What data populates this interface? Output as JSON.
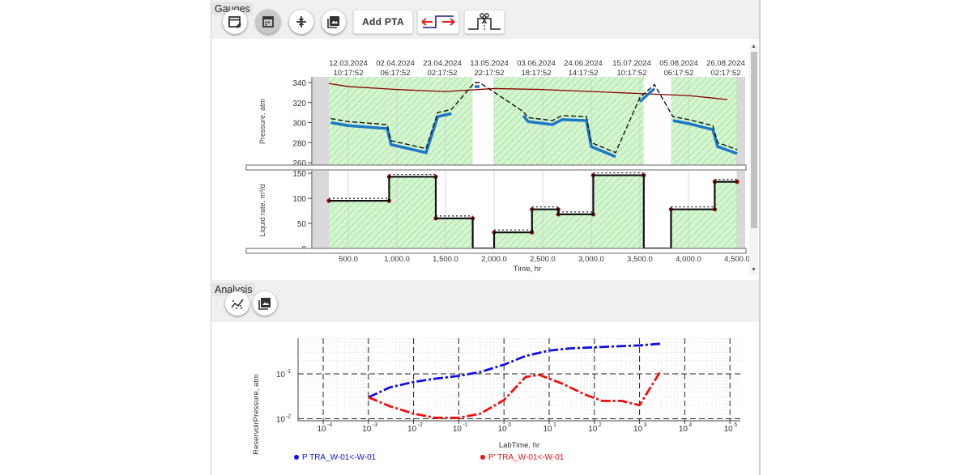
{
  "gauges": {
    "title": "Gauges",
    "add_pta_label": "Add PTA",
    "toolbar_icons": [
      "edit-calendar-icon",
      "calendar-icon",
      "compress-icon",
      "image-icon",
      "add-pta",
      "shift-icon",
      "cut-icon"
    ],
    "dates": [
      {
        "d": "12.03.2024",
        "t": "10:17:52"
      },
      {
        "d": "02.04.2024",
        "t": "06:17:52"
      },
      {
        "d": "23.04.2024",
        "t": "02:17:52"
      },
      {
        "d": "13.05.2024",
        "t": "22:17:52"
      },
      {
        "d": "03.06.2024",
        "t": "18:17:52"
      },
      {
        "d": "24.06.2024",
        "t": "14:17:52"
      },
      {
        "d": "15.07.2024",
        "t": "10:17:52"
      },
      {
        "d": "05.08.2024",
        "t": "06:17:52"
      },
      {
        "d": "26.08.2024",
        "t": "02:17:52"
      }
    ],
    "pressure_ylabel": "Pressure, atm",
    "pressure_ticks": [
      "340",
      "320",
      "300",
      "280",
      "260"
    ],
    "rate_ylabel": "Liquid rate, m³/d",
    "rate_ticks": [
      "150",
      "100",
      "50",
      "0"
    ],
    "time_ticks": [
      "500.0",
      "1,000.0",
      "1,500.0",
      "2,000.0",
      "2,500.0",
      "3,000.0",
      "3,500.0",
      "4,000.0",
      "4,500.0"
    ],
    "xlabel": "Time, hr"
  },
  "analysis": {
    "title": "Analysis",
    "toolbar_icons": [
      "trend-icon",
      "image-icon"
    ],
    "ylabel": "ReservoirPressure, atm",
    "xlabel": "LabTime, hr",
    "legend_p": "P TRA_W-01<-W-01",
    "legend_dp": "P' TRA_W-01<-W-01",
    "colors": {
      "p": "#1010e0",
      "dp": "#ee1111"
    }
  },
  "chart_data": [
    {
      "type": "line",
      "title": "",
      "xlabel": "Time, hr",
      "ylabel": "Pressure, atm",
      "xlim": [
        0,
        4700
      ],
      "ylim": [
        260,
        345
      ],
      "series": [
        {
          "color": "#8b0000",
          "x": [
            300,
            500,
            1000,
            1500,
            2000,
            2500,
            3000,
            3500,
            4000,
            4400
          ],
          "y": [
            339,
            336,
            333,
            331,
            334,
            333,
            331,
            329,
            327,
            323
          ]
        },
        {
          "color": "#1f77c8",
          "x": [
            320,
            500,
            900,
            940,
            1300,
            1420,
            1560,
            1800,
            1850,
            2300,
            2350,
            2600,
            2700,
            2950,
            3000,
            3250,
            3500,
            3650,
            3840,
            4000,
            4250,
            4300,
            4500
          ],
          "y": [
            300,
            297,
            294,
            278,
            270,
            306,
            309,
            336,
            336,
            307,
            301,
            298,
            303,
            302,
            276,
            266,
            321,
            334,
            302,
            299,
            293,
            276,
            269
          ]
        }
      ]
    },
    {
      "type": "area",
      "title": "",
      "xlabel": "Time, hr",
      "ylabel": "Liquid rate, m³/d",
      "xlim": [
        0,
        4700
      ],
      "ylim": [
        0,
        155
      ],
      "steps": [
        {
          "x0": 300,
          "x1": 920,
          "y": 95
        },
        {
          "x0": 920,
          "x1": 1400,
          "y": 143
        },
        {
          "x0": 1400,
          "x1": 1780,
          "y": 60
        },
        {
          "x0": 1780,
          "x1": 2000,
          "y": 0
        },
        {
          "x0": 2000,
          "x1": 2390,
          "y": 32
        },
        {
          "x0": 2390,
          "x1": 2660,
          "y": 78
        },
        {
          "x0": 2660,
          "x1": 3020,
          "y": 68
        },
        {
          "x0": 3020,
          "x1": 3540,
          "y": 146
        },
        {
          "x0": 3540,
          "x1": 3820,
          "y": 0
        },
        {
          "x0": 3820,
          "x1": 4270,
          "y": 78
        },
        {
          "x0": 4270,
          "x1": 4500,
          "y": 133
        }
      ]
    },
    {
      "type": "line",
      "title": "",
      "xlabel": "LabTime, hr",
      "ylabel": "ReservoirPressure, atm",
      "xscale": "log",
      "yscale": "log",
      "xlim": [
        0.0001,
        100000
      ],
      "ylim": [
        0.01,
        0.5
      ],
      "series": [
        {
          "name": "P TRA_W-01<-W-01",
          "color": "#1010e0",
          "x": [
            0.001,
            0.003,
            0.01,
            0.03,
            0.1,
            0.3,
            1,
            3,
            10,
            30,
            100,
            300,
            1000,
            3000
          ],
          "y": [
            0.03,
            0.05,
            0.066,
            0.078,
            0.09,
            0.11,
            0.16,
            0.25,
            0.33,
            0.37,
            0.39,
            0.41,
            0.43,
            0.47
          ]
        },
        {
          "name": "P' TRA_W-01<-W-01",
          "color": "#ee1111",
          "x": [
            0.001,
            0.003,
            0.01,
            0.03,
            0.1,
            0.3,
            1,
            2,
            3,
            6,
            20,
            60,
            150,
            400,
            1000,
            3000
          ],
          "y": [
            0.03,
            0.019,
            0.013,
            0.0105,
            0.0105,
            0.013,
            0.026,
            0.055,
            0.085,
            0.095,
            0.06,
            0.035,
            0.025,
            0.025,
            0.02,
            0.12
          ]
        }
      ]
    }
  ]
}
